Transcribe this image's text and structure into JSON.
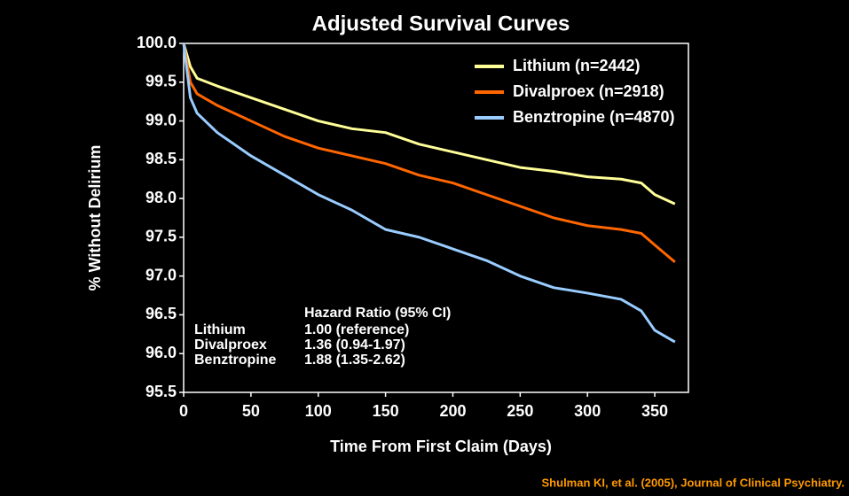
{
  "chart_data": {
    "type": "line",
    "title": "Adjusted Survival Curves",
    "xlabel": "Time From First Claim (Days)",
    "ylabel": "% Without Delirium",
    "x": [
      0,
      5,
      10,
      25,
      50,
      75,
      100,
      125,
      150,
      175,
      200,
      225,
      250,
      275,
      300,
      325,
      340,
      350,
      365
    ],
    "series": [
      {
        "name": "Lithium (n=2442)",
        "color": "#ffff99",
        "values": [
          100,
          99.7,
          99.55,
          99.45,
          99.3,
          99.15,
          99.0,
          98.9,
          98.85,
          98.7,
          98.6,
          98.5,
          98.4,
          98.35,
          98.28,
          98.25,
          98.2,
          98.05,
          97.93
        ]
      },
      {
        "name": "Divalproex (n=2918)",
        "color": "#ff6600",
        "values": [
          100,
          99.5,
          99.35,
          99.2,
          99.0,
          98.8,
          98.65,
          98.55,
          98.45,
          98.3,
          98.2,
          98.05,
          97.9,
          97.75,
          97.65,
          97.6,
          97.55,
          97.4,
          97.18
        ]
      },
      {
        "name": "Benztropine (n=4870)",
        "color": "#99ccff",
        "values": [
          100,
          99.3,
          99.1,
          98.85,
          98.55,
          98.3,
          98.05,
          97.85,
          97.6,
          97.5,
          97.35,
          97.2,
          97.0,
          96.85,
          96.78,
          96.7,
          96.55,
          96.3,
          96.15
        ]
      }
    ],
    "xlim": [
      0,
      375
    ],
    "xticks": [
      0,
      50,
      100,
      150,
      200,
      250,
      300,
      350
    ],
    "ylim": [
      95.5,
      100
    ],
    "yticks": [
      {
        "value": 95.5,
        "label": "95.5"
      },
      {
        "value": 96,
        "label": "96.0"
      },
      {
        "value": 96.5,
        "label": "96.5"
      },
      {
        "value": 97,
        "label": "97.0"
      },
      {
        "value": 97.5,
        "label": "97.5"
      },
      {
        "value": 98,
        "label": "98.0"
      },
      {
        "value": 98.5,
        "label": "98.5"
      },
      {
        "value": 99,
        "label": "99.0"
      },
      {
        "value": 99.5,
        "label": "99.5"
      },
      {
        "value": 100,
        "label": "100.0"
      }
    ],
    "legend": "upper right",
    "hazard_table": {
      "header": "Hazard Ratio (95% CI)",
      "rows": [
        [
          "Lithium",
          "1.00 (reference)"
        ],
        [
          "Divalproex",
          "1.36 (0.94-1.97)"
        ],
        [
          "Benztropine",
          "1.88 (1.35-2.62)"
        ]
      ]
    },
    "source": "Shulman KI, et al. (2005), Journal of Clinical Psychiatry."
  }
}
